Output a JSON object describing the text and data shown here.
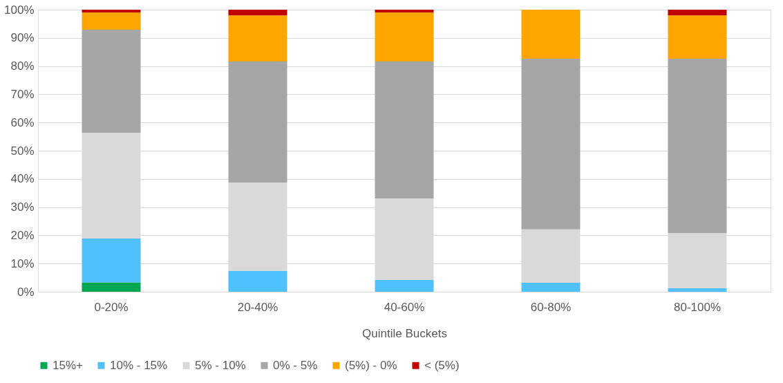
{
  "chart_data": {
    "type": "bar",
    "stacked": true,
    "xlabel": "Quintile Buckets",
    "categories": [
      "0-20%",
      "20-40%",
      "40-60%",
      "60-80%",
      "80-100%"
    ],
    "series": [
      {
        "name": "15%+",
        "color": "#00a651",
        "values": [
          3.3,
          0,
          0,
          0,
          0
        ]
      },
      {
        "name": "10% - 15%",
        "color": "#4fc1ff",
        "values": [
          15.6,
          7.4,
          4.2,
          3.2,
          1.2
        ]
      },
      {
        "name": "5% - 10%",
        "color": "#d9d9d9",
        "values": [
          37.5,
          31.3,
          28.9,
          18.9,
          19.6
        ]
      },
      {
        "name": "0% - 5%",
        "color": "#a6a6a6",
        "values": [
          36.5,
          42.9,
          48.5,
          60.5,
          61.8
        ]
      },
      {
        "name": "(5%) - 0%",
        "color": "#ffa500",
        "values": [
          6.1,
          16.4,
          17.4,
          17.4,
          15.4
        ]
      },
      {
        "name": "< (5%)",
        "color": "#c00000",
        "values": [
          1.0,
          2.0,
          1.0,
          0,
          2.0
        ]
      }
    ],
    "ylim": [
      0,
      100
    ],
    "yticks": [
      {
        "value": 0,
        "label": "0%"
      },
      {
        "value": 10,
        "label": "10%"
      },
      {
        "value": 20,
        "label": "20%"
      },
      {
        "value": 30,
        "label": "30%"
      },
      {
        "value": 40,
        "label": "40%"
      },
      {
        "value": 50,
        "label": "50%"
      },
      {
        "value": 60,
        "label": "60%"
      },
      {
        "value": 70,
        "label": "70%"
      },
      {
        "value": 80,
        "label": "80%"
      },
      {
        "value": 90,
        "label": "90%"
      },
      {
        "value": 100,
        "label": "100%"
      }
    ],
    "grid": "y",
    "legend": "bottom"
  }
}
